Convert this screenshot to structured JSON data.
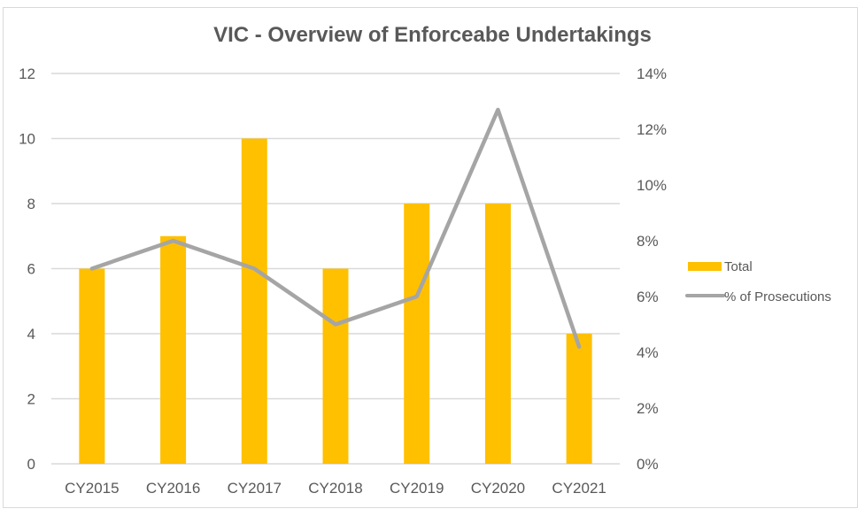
{
  "chart_data": {
    "type": "bar+line",
    "title": "VIC - Overview of Enforceabe Undertakings",
    "categories": [
      "CY2015",
      "CY2016",
      "CY2017",
      "CY2018",
      "CY2019",
      "CY2020",
      "CY2021"
    ],
    "series": [
      {
        "name": "Total",
        "type": "bar",
        "axis": "left",
        "color": "#FFC000",
        "values": [
          6,
          7,
          10,
          6,
          8,
          8,
          4
        ]
      },
      {
        "name": "% of Prosecutions",
        "type": "line",
        "axis": "right",
        "color": "#A5A5A5",
        "values": [
          7.0,
          8.0,
          7.0,
          5.0,
          6.0,
          12.7,
          4.2
        ]
      }
    ],
    "y_left": {
      "min": 0,
      "max": 12,
      "step": 2,
      "ticks": [
        "0",
        "2",
        "4",
        "6",
        "8",
        "10",
        "12"
      ]
    },
    "y_right": {
      "min": 0,
      "max": 14,
      "step": 2,
      "ticks": [
        "0%",
        "2%",
        "4%",
        "6%",
        "8%",
        "10%",
        "12%",
        "14%"
      ]
    },
    "xlabel": "",
    "ylabel": "",
    "grid": true,
    "legend_position": "right"
  },
  "colors": {
    "grid": "#D9D9D9",
    "text": "#595959"
  }
}
